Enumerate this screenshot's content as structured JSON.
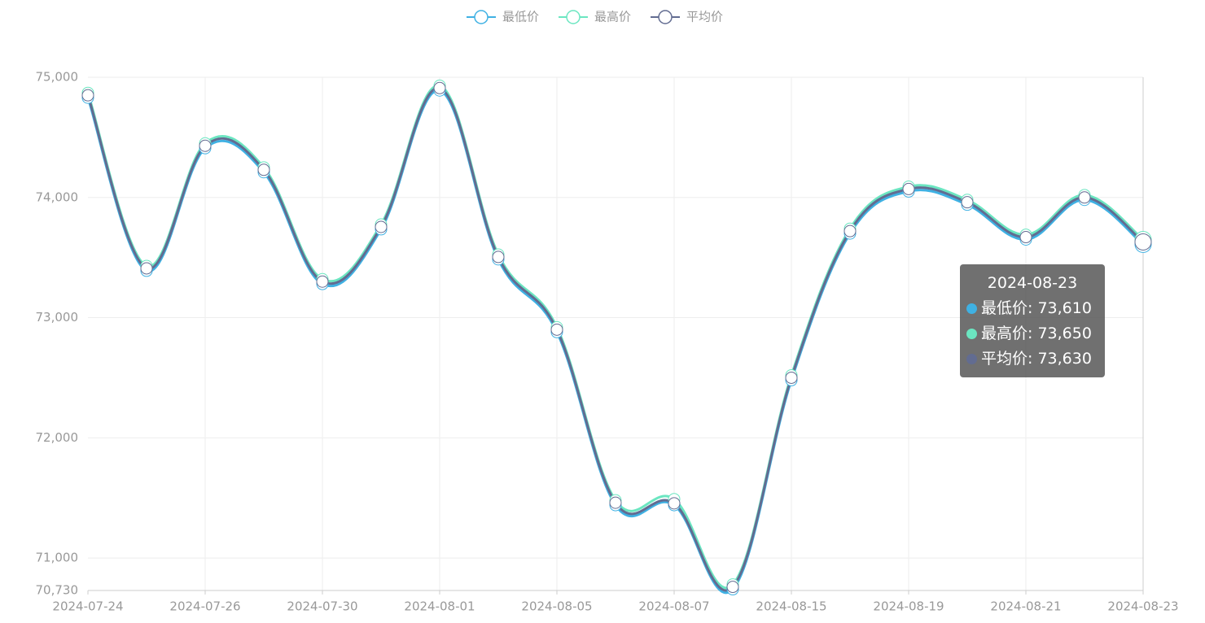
{
  "chart_data": {
    "type": "line",
    "smooth": true,
    "grid": true,
    "categories": [
      "2024-07-24",
      null,
      "2024-07-26",
      null,
      "2024-07-30",
      null,
      "2024-08-01",
      null,
      "2024-08-05",
      null,
      "2024-08-07",
      null,
      "2024-08-15",
      null,
      "2024-08-19",
      null,
      "2024-08-21",
      null,
      "2024-08-23"
    ],
    "series": [
      {
        "name": "最低价",
        "color": "#3fb1e3",
        "values": [
          74830,
          73390,
          74410,
          74210,
          73280,
          73735,
          74890,
          73485,
          72880,
          71440,
          71440,
          70740,
          72480,
          73700,
          74050,
          73940,
          73650,
          73980,
          73610
        ]
      },
      {
        "name": "最高价",
        "color": "#6be6c1",
        "values": [
          74870,
          73430,
          74450,
          74250,
          73320,
          73775,
          74930,
          73525,
          72920,
          71480,
          71490,
          70780,
          72520,
          73740,
          74090,
          73980,
          73690,
          74020,
          73650
        ]
      },
      {
        "name": "平均价",
        "color": "#626c91",
        "values": [
          74850,
          73410,
          74430,
          74230,
          73300,
          73755,
          74910,
          73505,
          72900,
          71460,
          71455,
          70760,
          72500,
          73720,
          74070,
          73960,
          73670,
          74000,
          73630
        ]
      }
    ],
    "ylim": [
      70730,
      75000
    ],
    "yticks": [
      {
        "value": 70730,
        "label": "70,730"
      },
      {
        "value": 71000,
        "label": "71,000"
      },
      {
        "value": 72000,
        "label": "72,000"
      },
      {
        "value": 73000,
        "label": "73,000"
      },
      {
        "value": 74000,
        "label": "74,000"
      },
      {
        "value": 75000,
        "label": "75,000"
      }
    ],
    "tooltip": {
      "title": "2024-08-23",
      "items": [
        "最低价: 73,610",
        "最高价: 73,650",
        "平均价: 73,630"
      ]
    }
  }
}
